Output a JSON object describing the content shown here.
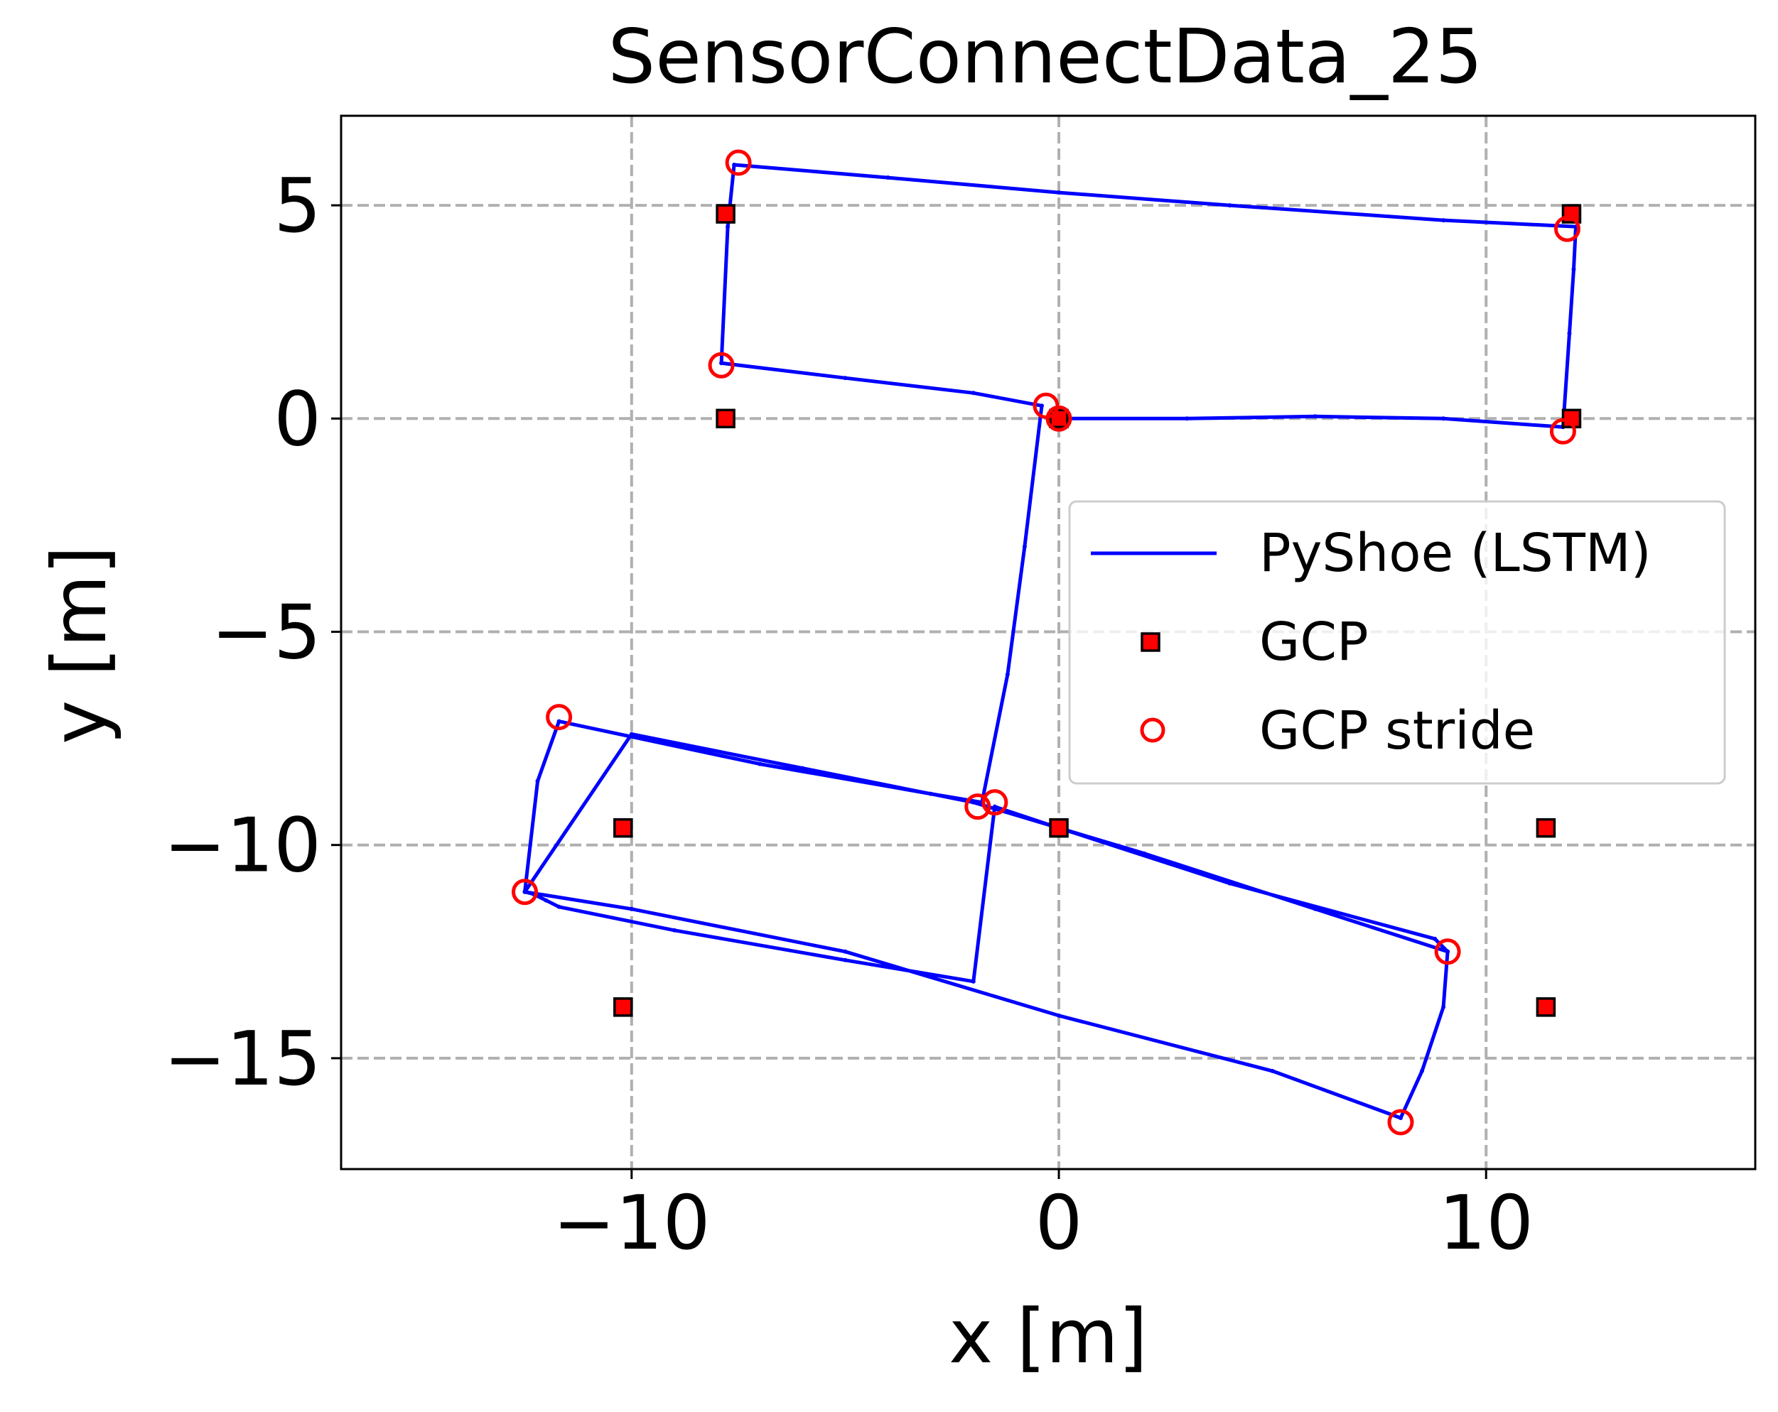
{
  "chart_data": {
    "type": "scatter",
    "title": "SensorConnectData_25",
    "xlabel": "x [m]",
    "ylabel": "y [m]",
    "xlim": [
      -16.8,
      16.3
    ],
    "ylim": [
      -17.6,
      7.1
    ],
    "x_ticks": [
      -10,
      0,
      10
    ],
    "x_tick_labels": [
      "−10",
      "0",
      "10"
    ],
    "y_ticks": [
      5,
      0,
      -5,
      -10,
      -15
    ],
    "y_tick_labels": [
      "5",
      "0",
      "−5",
      "−10",
      "−15"
    ],
    "grid": true,
    "grid_style": "dashed",
    "legend_position": "right",
    "colors": {
      "trajectory": "#0000ff",
      "gcp_fill": "#ff0000",
      "gcp_edge": "#000000",
      "stride": "#ff0000",
      "grid": "#b0b0b0"
    },
    "series": [
      {
        "name": "PyShoe (LSTM)",
        "kind": "line",
        "x": [
          0.0,
          3.0,
          6.0,
          9.0,
          11.8,
          11.95,
          12.05,
          12.1,
          9.0,
          4.0,
          0.0,
          -4.0,
          -7.6,
          -7.75,
          -7.9,
          -5.0,
          -2.0,
          -0.4,
          -0.8,
          -1.2,
          -1.8,
          -3.0,
          -7.0,
          -11.7,
          -12.2,
          -12.5,
          -10.0,
          -5.0,
          0.0,
          5.0,
          8.0,
          8.5,
          9.0,
          9.1,
          6.0,
          2.0,
          -2.0,
          -6.0,
          -10.0,
          -12.5,
          -12.3,
          -12.0,
          -11.7,
          -9.0,
          -5.0,
          -2.0,
          -1.5,
          0.0,
          4.0,
          8.8,
          9.1
        ],
        "y": [
          0.0,
          0.0,
          0.05,
          0.0,
          -0.2,
          2.0,
          3.5,
          4.5,
          4.65,
          5.0,
          5.3,
          5.65,
          5.95,
          4.5,
          1.3,
          0.95,
          0.6,
          0.3,
          -3.0,
          -6.0,
          -9.0,
          -8.8,
          -8.1,
          -7.1,
          -8.5,
          -11.1,
          -11.5,
          -12.5,
          -14.0,
          -15.3,
          -16.4,
          -15.3,
          -13.8,
          -12.5,
          -11.5,
          -10.2,
          -9.0,
          -8.2,
          -7.4,
          -11.1,
          -11.15,
          -11.3,
          -11.45,
          -12.0,
          -12.7,
          -13.2,
          -9.1,
          -9.6,
          -10.9,
          -12.2,
          -12.5
        ]
      },
      {
        "name": "GCP",
        "kind": "square-marker",
        "x": [
          -7.8,
          12.0,
          -7.8,
          12.0,
          -10.2,
          0.0,
          11.4,
          -10.2,
          11.4,
          0.0
        ],
        "y": [
          4.8,
          4.8,
          0.0,
          0.0,
          -9.6,
          -9.6,
          -9.6,
          -13.8,
          -13.8,
          0.0
        ]
      },
      {
        "name": "GCP stride",
        "kind": "circle-marker",
        "x": [
          -7.5,
          11.9,
          -7.9,
          -0.3,
          0.0,
          11.8,
          -11.7,
          -1.9,
          -1.5,
          -12.5,
          9.1,
          8.0
        ],
        "y": [
          6.0,
          4.45,
          1.25,
          0.3,
          0.0,
          -0.3,
          -7.0,
          -9.1,
          -9.0,
          -11.1,
          -12.5,
          -16.5
        ]
      }
    ]
  }
}
